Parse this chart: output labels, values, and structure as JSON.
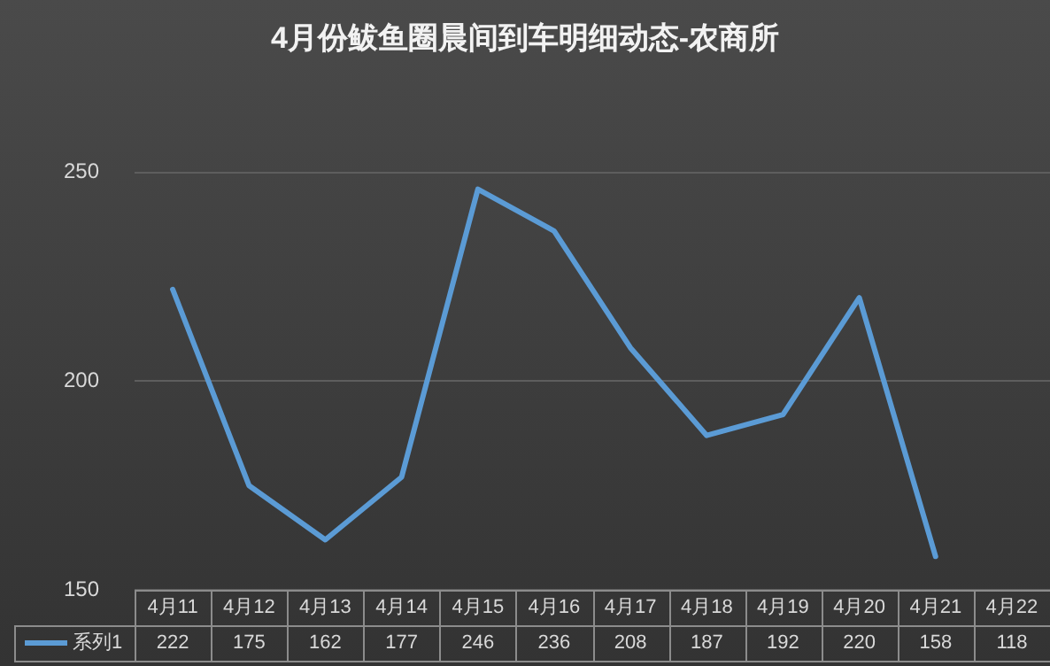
{
  "chart_data": {
    "type": "line",
    "title": "4月份鲅鱼圈晨间到车明细动态-农商所",
    "categories": [
      "4月11",
      "4月12",
      "4月13",
      "4月14",
      "4月15",
      "4月16",
      "4月17",
      "4月18",
      "4月19",
      "4月20",
      "4月21",
      "4月22"
    ],
    "series": [
      {
        "name": "系列1",
        "color": "#5b9bd5",
        "values": [
          222,
          175,
          162,
          177,
          246,
          236,
          208,
          187,
          192,
          220,
          158,
          null
        ],
        "value_labels": [
          "222",
          "175",
          "162",
          "177",
          "246",
          "236",
          "208",
          "187",
          "192",
          "220",
          "158",
          "118"
        ]
      }
    ],
    "ylim": [
      150,
      250
    ],
    "yticks": [
      150,
      200,
      250
    ],
    "grid": "y",
    "marker": "none",
    "line_style": "solid"
  }
}
